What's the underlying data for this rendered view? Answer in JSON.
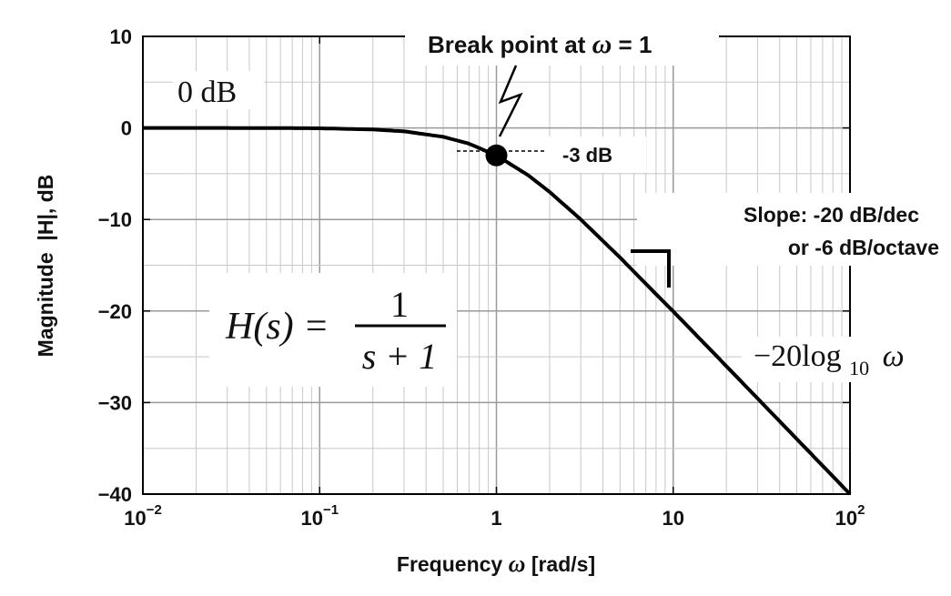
{
  "chart_data": {
    "type": "line",
    "title": "",
    "xlabel_prefix": "Frequency",
    "xlabel_symbol": "ω",
    "xlabel_suffix": "[rad/s]",
    "ylabel": "Magnitude  |H|, dB",
    "x_scale": "log",
    "xlim": [
      0.01,
      100
    ],
    "ylim": [
      -40,
      10
    ],
    "grid": true,
    "x_ticks": [
      {
        "value": 0.01,
        "base": "10",
        "exp": "−2"
      },
      {
        "value": 0.1,
        "base": "10",
        "exp": "−1"
      },
      {
        "value": 1,
        "base": "1",
        "exp": ""
      },
      {
        "value": 10,
        "base": "10",
        "exp": ""
      },
      {
        "value": 100,
        "base": "10",
        "exp": "2"
      }
    ],
    "y_ticks": [
      {
        "value": 10,
        "label": "10"
      },
      {
        "value": 0,
        "label": "0"
      },
      {
        "value": -10,
        "label": "−10"
      },
      {
        "value": -20,
        "label": "−20"
      },
      {
        "value": -30,
        "label": "−30"
      },
      {
        "value": -40,
        "label": "−40"
      }
    ],
    "series": [
      {
        "x": [
          0.01,
          0.02,
          0.05,
          0.1,
          0.2,
          0.3,
          0.5,
          0.7,
          1,
          1.5,
          2,
          3,
          5,
          7,
          10,
          20,
          50,
          100
        ],
        "values": [
          0,
          0,
          -0.01,
          -0.04,
          -0.17,
          -0.37,
          -0.97,
          -1.72,
          -3.01,
          -5.12,
          -6.99,
          -10,
          -14.15,
          -17.03,
          -20.04,
          -26.03,
          -33.98,
          -40
        ],
        "color": "#000000"
      }
    ],
    "break_point": {
      "x": 1,
      "y": -3
    }
  },
  "annotations": {
    "zero_db": "0 dB",
    "break_prefix": "Break point at",
    "break_symbol": "ω",
    "break_suffix": "= 1",
    "minus3": "-3 dB",
    "slope_line1": "Slope:   -20 dB/dec",
    "slope_line2": "or -6 dB/octave",
    "asym_prefix": "−20log",
    "asym_sub": "10",
    "asym_var": "ω",
    "hs_left": "H(s) =",
    "hs_num": "1",
    "hs_den": "s + 1"
  }
}
